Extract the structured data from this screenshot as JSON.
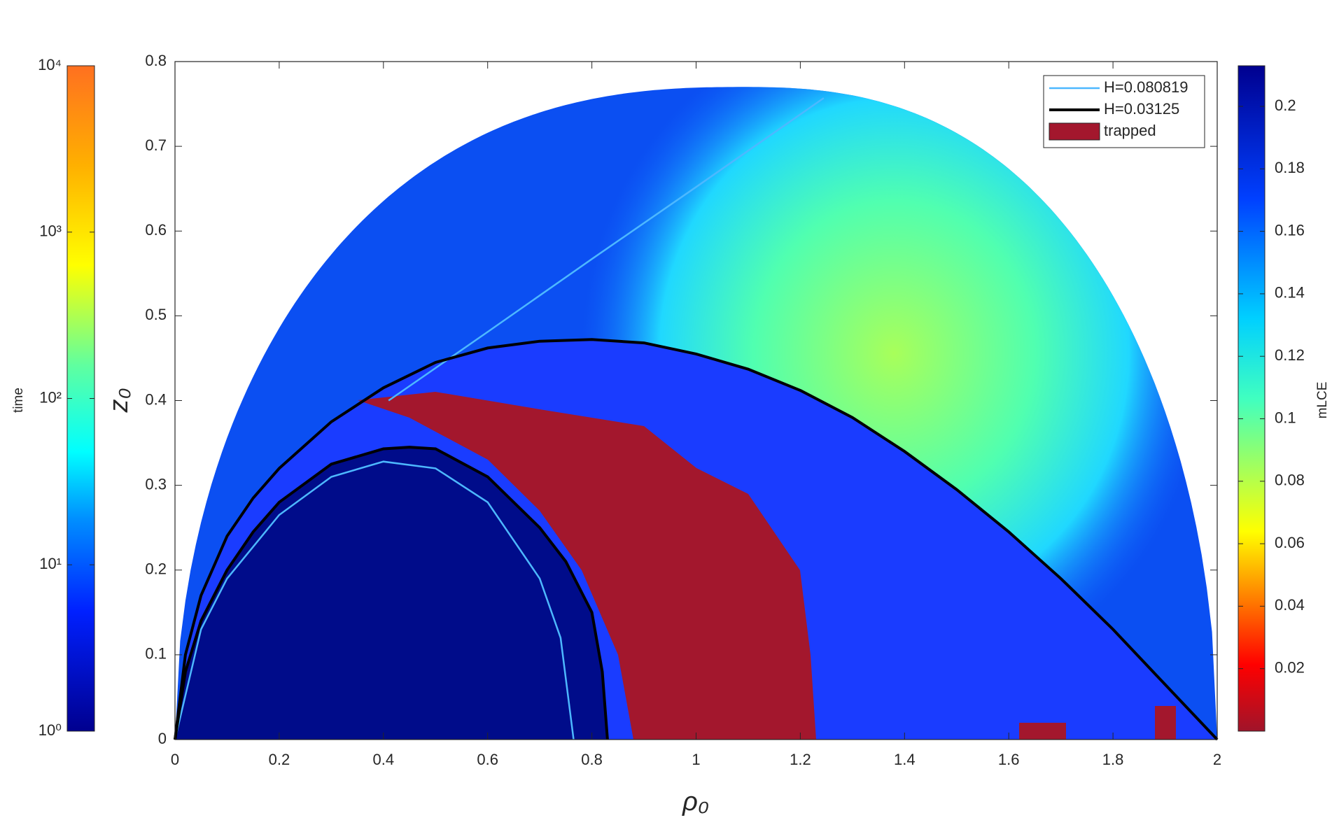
{
  "chart_data": {
    "type": "contour",
    "xlabel": "ρ₀",
    "ylabel": "z₀",
    "xlim": [
      0,
      2
    ],
    "ylim": [
      0,
      0.8
    ],
    "xticks": [
      0,
      0.2,
      0.4,
      0.6,
      0.8,
      1,
      1.2,
      1.4,
      1.6,
      1.8,
      2
    ],
    "yticks": [
      0,
      0.1,
      0.2,
      0.3,
      0.4,
      0.5,
      0.6,
      0.7,
      0.8
    ],
    "legend": "upper right",
    "series": [
      {
        "name": "H=0.080819",
        "color": "#4db8ff",
        "x": [
          0,
          0.05,
          0.1,
          0.2,
          0.3,
          0.4,
          0.5,
          0.6,
          0.7,
          0.74,
          0.765,
          null,
          0.41,
          0.6,
          0.8,
          1.0,
          1.245
        ],
        "values": [
          0,
          0.13,
          0.19,
          0.265,
          0.31,
          0.328,
          0.32,
          0.28,
          0.19,
          0.12,
          0,
          null,
          0.4,
          0.481,
          0.567,
          0.652,
          0.757
        ]
      },
      {
        "name": "H=0.03125",
        "color": "#000000",
        "x": [
          0,
          0.02,
          0.05,
          0.1,
          0.15,
          0.2,
          0.3,
          0.4,
          0.5,
          0.6,
          0.7,
          0.8,
          0.9,
          1.0,
          1.1,
          1.2,
          1.3,
          1.4,
          1.5,
          1.6,
          1.7,
          1.8,
          1.9,
          2.0,
          null,
          0,
          0.02,
          0.05,
          0.1,
          0.15,
          0.2,
          0.3,
          0.4,
          0.45,
          0.5,
          0.6,
          0.7,
          0.75,
          0.8,
          0.82,
          0.83
        ],
        "values": [
          0,
          0.1,
          0.17,
          0.24,
          0.285,
          0.32,
          0.375,
          0.415,
          0.445,
          0.462,
          0.47,
          0.472,
          0.468,
          0.455,
          0.437,
          0.412,
          0.38,
          0.34,
          0.295,
          0.245,
          0.19,
          0.13,
          0.065,
          0,
          null,
          0,
          0.08,
          0.14,
          0.2,
          0.245,
          0.28,
          0.325,
          0.343,
          0.345,
          0.343,
          0.31,
          0.25,
          0.21,
          0.15,
          0.08,
          0
        ]
      }
    ],
    "regions": [
      {
        "name": "trapped",
        "color": "#a3172d"
      }
    ],
    "colorbars": [
      {
        "label": "time",
        "scale": "log",
        "lim": [
          1,
          10000
        ],
        "ticks": [
          {
            "value": 1,
            "label": "10⁰"
          },
          {
            "value": 10,
            "label": "10¹"
          },
          {
            "value": 100,
            "label": "10²"
          },
          {
            "value": 1000,
            "label": "10³"
          },
          {
            "value": 10000,
            "label": "10⁴"
          }
        ]
      },
      {
        "label": "mLCE",
        "scale": "linear",
        "lim": [
          0,
          0.213
        ],
        "ticks": [
          0.02,
          0.04,
          0.06,
          0.08,
          0.1,
          0.12,
          0.14,
          0.16,
          0.18,
          0.2
        ]
      }
    ]
  }
}
